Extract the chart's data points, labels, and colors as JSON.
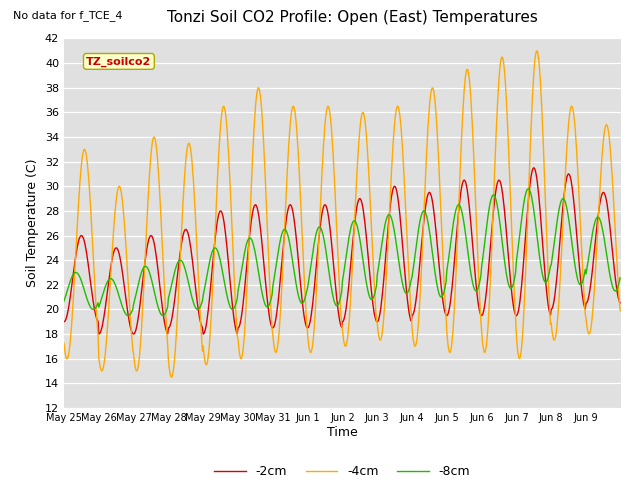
{
  "title": "Tonzi Soil CO2 Profile: Open (East) Temperatures",
  "subtitle": "No data for f_TCE_4",
  "ylabel": "Soil Temperature (C)",
  "xlabel": "Time",
  "ylim": [
    12,
    42
  ],
  "yticks": [
    12,
    14,
    16,
    18,
    20,
    22,
    24,
    26,
    28,
    30,
    32,
    34,
    36,
    38,
    40,
    42
  ],
  "legend_label": "TZ_soilco2",
  "line_labels": [
    "-2cm",
    "-4cm",
    "-8cm"
  ],
  "line_colors": [
    "#dd0000",
    "#ffaa00",
    "#22bb00"
  ],
  "x_tick_labels": [
    "May 25",
    "May 26",
    "May 27",
    "May 28",
    "May 29",
    "May 30",
    "May 31",
    "Jun 1",
    "Jun 2",
    "Jun 3",
    "Jun 4",
    "Jun 5",
    "Jun 6",
    "Jun 7",
    "Jun 8",
    "Jun 9"
  ],
  "plot_bg": "#e0e0e0",
  "n_days": 16,
  "points_per_day": 48,
  "amp_2cm": [
    3.5,
    3.5,
    4.0,
    4.0,
    5.0,
    5.0,
    5.0,
    5.0,
    5.0,
    5.5,
    5.0,
    5.5,
    5.5,
    6.0,
    5.5,
    4.5
  ],
  "amp_4cm": [
    8.5,
    7.5,
    9.5,
    9.5,
    10.5,
    11.0,
    10.0,
    10.0,
    9.5,
    9.5,
    10.5,
    11.5,
    12.0,
    12.5,
    9.5,
    8.5
  ],
  "amp_8cm": [
    1.5,
    1.5,
    2.0,
    2.0,
    2.5,
    2.8,
    3.0,
    3.2,
    3.2,
    3.2,
    3.5,
    3.5,
    3.8,
    3.8,
    3.5,
    3.0
  ],
  "mean_2cm": [
    22.5,
    21.5,
    22.0,
    22.5,
    23.0,
    23.5,
    23.5,
    23.5,
    24.0,
    24.5,
    24.5,
    25.0,
    25.0,
    25.5,
    25.5,
    25.0
  ],
  "mean_4cm": [
    24.5,
    22.5,
    24.5,
    24.0,
    26.0,
    27.0,
    26.5,
    26.5,
    26.5,
    27.0,
    27.5,
    28.0,
    28.5,
    28.5,
    27.0,
    26.5
  ],
  "mean_8cm": [
    21.5,
    21.0,
    21.5,
    22.0,
    22.5,
    23.0,
    23.5,
    23.5,
    24.0,
    24.5,
    24.5,
    25.0,
    25.5,
    26.0,
    25.5,
    24.5
  ],
  "phase_2cm": 0.0,
  "phase_4cm": -0.55,
  "phase_8cm": 1.0,
  "figwidth": 6.4,
  "figheight": 4.8,
  "dpi": 100
}
